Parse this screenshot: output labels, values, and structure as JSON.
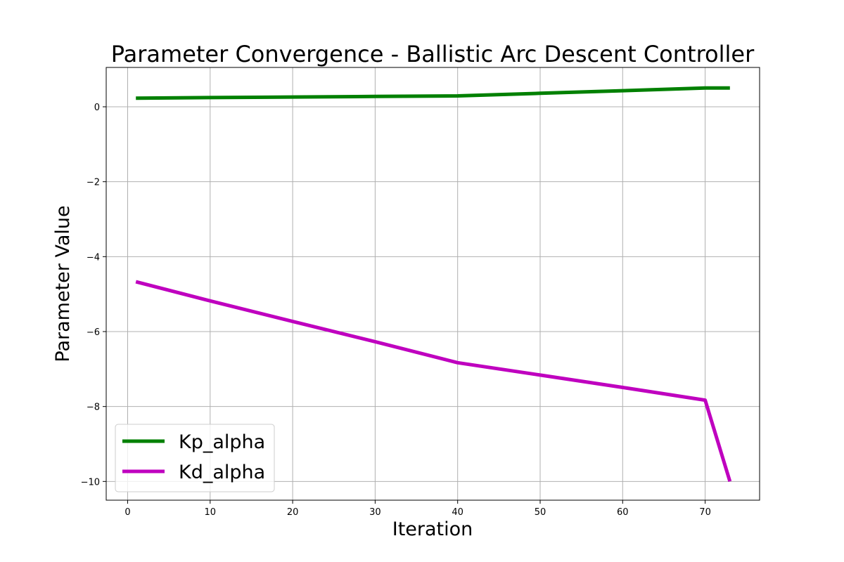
{
  "chart_data": {
    "type": "line",
    "title": "Parameter Convergence - Ballistic Arc Descent Controller",
    "xlabel": "Iteration",
    "ylabel": "Parameter Value",
    "xlim": [
      -2.6,
      76.6
    ],
    "ylim": [
      -10.5,
      1.05
    ],
    "xticks": [
      0,
      10,
      20,
      30,
      40,
      50,
      60,
      70
    ],
    "yticks": [
      0,
      -2,
      -4,
      -6,
      -8,
      -10
    ],
    "xtick_labels": [
      "0",
      "10",
      "20",
      "30",
      "40",
      "50",
      "60",
      "70"
    ],
    "ytick_labels": [
      "0",
      "−2",
      "−4",
      "−6",
      "−8",
      "−10"
    ],
    "grid": true,
    "legend_position": "lower-left",
    "series": [
      {
        "name": "Kp_alpha",
        "color": "#008000",
        "x": [
          1,
          10,
          20,
          30,
          40,
          50,
          60,
          70,
          73
        ],
        "y": [
          0.23,
          0.245,
          0.26,
          0.275,
          0.29,
          0.36,
          0.43,
          0.5,
          0.5
        ]
      },
      {
        "name": "Kd_alpha",
        "color": "#bf00bf",
        "x": [
          1,
          10,
          20,
          30,
          40,
          50,
          60,
          70,
          73
        ],
        "y": [
          -4.67,
          -5.18,
          -5.73,
          -6.27,
          -6.83,
          -7.16,
          -7.49,
          -7.83,
          -10.0
        ]
      }
    ]
  }
}
